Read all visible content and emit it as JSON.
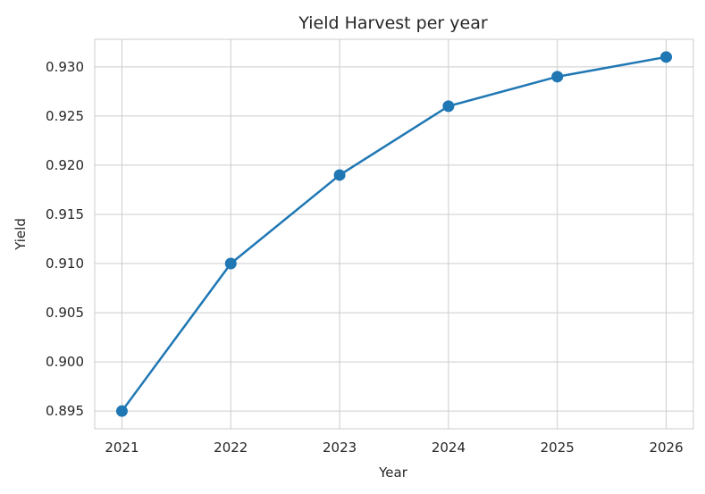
{
  "chart_data": {
    "type": "line",
    "title": "Yield Harvest per year",
    "xlabel": "Year",
    "ylabel": "Yield",
    "x": [
      2021,
      2022,
      2023,
      2024,
      2025,
      2026
    ],
    "series": [
      {
        "values": [
          0.895,
          0.91,
          0.919,
          0.926,
          0.929,
          0.931
        ],
        "color": "#1f77b4"
      }
    ],
    "xlim": [
      2020.75,
      2026.25
    ],
    "ylim": [
      0.8932,
      0.9328
    ],
    "x_ticks": [
      "2021",
      "2022",
      "2023",
      "2024",
      "2025",
      "2026"
    ],
    "y_ticks": [
      "0.895",
      "0.900",
      "0.905",
      "0.910",
      "0.915",
      "0.920",
      "0.925",
      "0.930"
    ],
    "grid": true,
    "marker": "circle"
  }
}
